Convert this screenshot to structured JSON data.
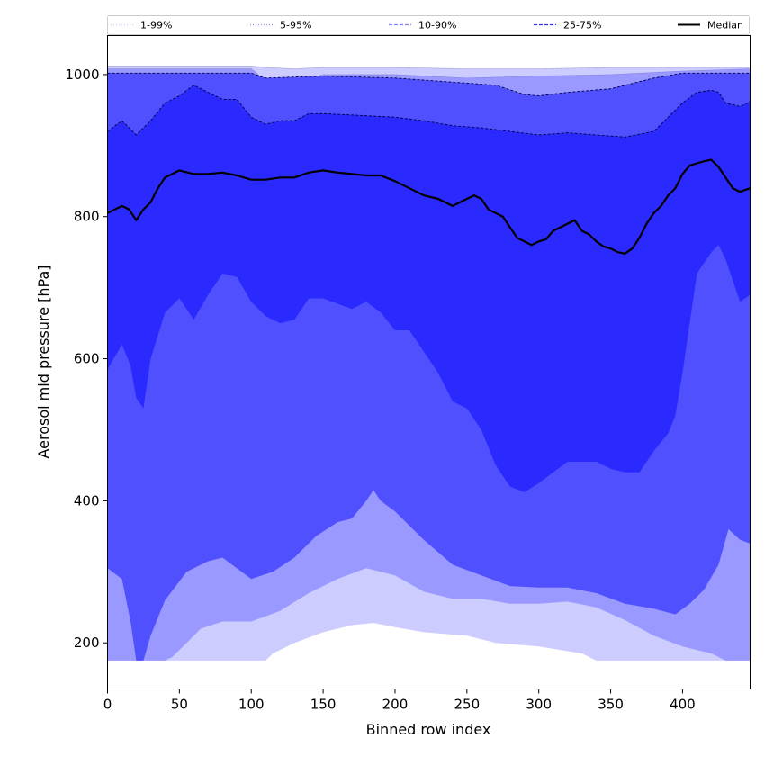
{
  "chart_data": {
    "type": "area",
    "xlabel": "Binned row index",
    "ylabel": "Aerosol mid pressure [hPa]",
    "xlim": [
      0,
      447
    ],
    "ylim": [
      135,
      1055
    ],
    "xticks": [
      0,
      50,
      100,
      150,
      200,
      250,
      300,
      350,
      400
    ],
    "yticks": [
      200,
      400,
      600,
      800,
      1000
    ],
    "grid": false,
    "legend_position": "top, above plot",
    "legend": [
      {
        "label": "1-99%",
        "color": "#d2d2fa",
        "style": "dotted"
      },
      {
        "label": "5-95%",
        "color": "#9b9bf5",
        "style": "dotted"
      },
      {
        "label": "10-90%",
        "color": "#8080ff",
        "style": "dashed"
      },
      {
        "label": "25-75%",
        "color": "#3030ff",
        "style": "dashed"
      },
      {
        "label": "Median",
        "color": "#000000",
        "style": "solid"
      }
    ],
    "bands": [
      {
        "name": "1-99%",
        "color": "#ccccff",
        "lower": [
          [
            0,
            175
          ],
          [
            100,
            175
          ],
          [
            110,
            175
          ],
          [
            115,
            185
          ],
          [
            120,
            190
          ],
          [
            130,
            200
          ],
          [
            150,
            215
          ],
          [
            170,
            225
          ],
          [
            185,
            228
          ],
          [
            200,
            222
          ],
          [
            220,
            215
          ],
          [
            250,
            210
          ],
          [
            270,
            200
          ],
          [
            300,
            195
          ],
          [
            330,
            185
          ],
          [
            340,
            175
          ],
          [
            447,
            175
          ]
        ],
        "upper": [
          [
            0,
            1012
          ],
          [
            100,
            1012
          ],
          [
            110,
            1010
          ],
          [
            130,
            1008
          ],
          [
            150,
            1010
          ],
          [
            200,
            1010
          ],
          [
            250,
            1008
          ],
          [
            300,
            1008
          ],
          [
            350,
            1010
          ],
          [
            400,
            1010
          ],
          [
            447,
            1010
          ]
        ]
      },
      {
        "name": "5-95%",
        "color": "#9999ff",
        "lower": [
          [
            0,
            175
          ],
          [
            40,
            175
          ],
          [
            45,
            180
          ],
          [
            55,
            200
          ],
          [
            65,
            220
          ],
          [
            80,
            230
          ],
          [
            100,
            230
          ],
          [
            120,
            245
          ],
          [
            140,
            270
          ],
          [
            160,
            290
          ],
          [
            180,
            305
          ],
          [
            200,
            295
          ],
          [
            220,
            272
          ],
          [
            240,
            262
          ],
          [
            260,
            262
          ],
          [
            280,
            255
          ],
          [
            300,
            255
          ],
          [
            320,
            258
          ],
          [
            340,
            250
          ],
          [
            360,
            232
          ],
          [
            380,
            210
          ],
          [
            400,
            195
          ],
          [
            420,
            185
          ],
          [
            430,
            175
          ],
          [
            447,
            175
          ]
        ],
        "upper": [
          [
            0,
            1008
          ],
          [
            100,
            1008
          ],
          [
            105,
            1000
          ],
          [
            110,
            990
          ],
          [
            115,
            985
          ],
          [
            130,
            988
          ],
          [
            150,
            1000
          ],
          [
            200,
            1000
          ],
          [
            220,
            998
          ],
          [
            250,
            995
          ],
          [
            300,
            998
          ],
          [
            350,
            1000
          ],
          [
            400,
            1005
          ],
          [
            447,
            1008
          ]
        ]
      },
      {
        "name": "10-90%",
        "color": "#5050ff",
        "lower": [
          [
            0,
            305
          ],
          [
            10,
            290
          ],
          [
            16,
            230
          ],
          [
            20,
            175
          ],
          [
            25,
            175
          ],
          [
            30,
            210
          ],
          [
            40,
            260
          ],
          [
            55,
            300
          ],
          [
            70,
            315
          ],
          [
            80,
            320
          ],
          [
            100,
            290
          ],
          [
            115,
            300
          ],
          [
            130,
            320
          ],
          [
            145,
            350
          ],
          [
            160,
            370
          ],
          [
            170,
            375
          ],
          [
            180,
            400
          ],
          [
            185,
            415
          ],
          [
            190,
            400
          ],
          [
            200,
            385
          ],
          [
            220,
            345
          ],
          [
            240,
            310
          ],
          [
            260,
            295
          ],
          [
            280,
            280
          ],
          [
            300,
            278
          ],
          [
            320,
            278
          ],
          [
            340,
            270
          ],
          [
            360,
            255
          ],
          [
            380,
            248
          ],
          [
            395,
            240
          ],
          [
            405,
            255
          ],
          [
            415,
            275
          ],
          [
            425,
            310
          ],
          [
            432,
            360
          ],
          [
            440,
            345
          ],
          [
            447,
            340
          ]
        ],
        "upper": [
          [
            0,
            1002
          ],
          [
            100,
            1002
          ],
          [
            110,
            995
          ],
          [
            150,
            998
          ],
          [
            200,
            995
          ],
          [
            250,
            988
          ],
          [
            270,
            985
          ],
          [
            290,
            972
          ],
          [
            300,
            970
          ],
          [
            320,
            975
          ],
          [
            350,
            980
          ],
          [
            380,
            995
          ],
          [
            400,
            1002
          ],
          [
            447,
            1002
          ]
        ]
      },
      {
        "name": "25-75%",
        "color": "#2a2aff",
        "lower": [
          [
            0,
            585
          ],
          [
            10,
            620
          ],
          [
            16,
            590
          ],
          [
            20,
            545
          ],
          [
            25,
            530
          ],
          [
            30,
            600
          ],
          [
            40,
            665
          ],
          [
            50,
            685
          ],
          [
            60,
            655
          ],
          [
            70,
            690
          ],
          [
            80,
            720
          ],
          [
            90,
            715
          ],
          [
            100,
            680
          ],
          [
            110,
            660
          ],
          [
            120,
            650
          ],
          [
            130,
            655
          ],
          [
            140,
            685
          ],
          [
            150,
            685
          ],
          [
            170,
            670
          ],
          [
            180,
            680
          ],
          [
            190,
            665
          ],
          [
            200,
            640
          ],
          [
            210,
            640
          ],
          [
            220,
            610
          ],
          [
            230,
            580
          ],
          [
            240,
            540
          ],
          [
            250,
            530
          ],
          [
            260,
            500
          ],
          [
            270,
            450
          ],
          [
            280,
            420
          ],
          [
            290,
            412
          ],
          [
            300,
            425
          ],
          [
            310,
            440
          ],
          [
            320,
            455
          ],
          [
            340,
            455
          ],
          [
            350,
            445
          ],
          [
            360,
            440
          ],
          [
            370,
            440
          ],
          [
            380,
            470
          ],
          [
            390,
            495
          ],
          [
            395,
            520
          ],
          [
            400,
            580
          ],
          [
            410,
            720
          ],
          [
            420,
            750
          ],
          [
            425,
            760
          ],
          [
            430,
            740
          ],
          [
            440,
            680
          ],
          [
            447,
            690
          ]
        ],
        "upper": [
          [
            0,
            920
          ],
          [
            10,
            935
          ],
          [
            20,
            915
          ],
          [
            30,
            935
          ],
          [
            40,
            960
          ],
          [
            50,
            970
          ],
          [
            60,
            985
          ],
          [
            70,
            975
          ],
          [
            80,
            965
          ],
          [
            90,
            965
          ],
          [
            100,
            940
          ],
          [
            110,
            930
          ],
          [
            120,
            935
          ],
          [
            130,
            935
          ],
          [
            140,
            945
          ],
          [
            150,
            945
          ],
          [
            200,
            940
          ],
          [
            220,
            935
          ],
          [
            240,
            928
          ],
          [
            260,
            925
          ],
          [
            280,
            920
          ],
          [
            300,
            915
          ],
          [
            320,
            918
          ],
          [
            340,
            915
          ],
          [
            360,
            912
          ],
          [
            380,
            920
          ],
          [
            390,
            940
          ],
          [
            400,
            960
          ],
          [
            410,
            975
          ],
          [
            420,
            978
          ],
          [
            425,
            975
          ],
          [
            430,
            960
          ],
          [
            440,
            955
          ],
          [
            447,
            962
          ]
        ]
      }
    ],
    "series": [
      {
        "name": "Median",
        "color": "#000000",
        "x": [
          0,
          5,
          10,
          15,
          20,
          25,
          30,
          35,
          40,
          45,
          50,
          60,
          70,
          80,
          90,
          100,
          110,
          120,
          130,
          140,
          150,
          160,
          170,
          180,
          190,
          200,
          210,
          220,
          230,
          240,
          250,
          255,
          260,
          265,
          270,
          275,
          280,
          285,
          290,
          295,
          300,
          305,
          310,
          315,
          320,
          325,
          330,
          335,
          340,
          345,
          350,
          355,
          360,
          365,
          370,
          375,
          380,
          385,
          390,
          395,
          400,
          405,
          410,
          415,
          420,
          425,
          430,
          435,
          440,
          447
        ],
        "y": [
          805,
          810,
          815,
          810,
          795,
          810,
          820,
          840,
          855,
          860,
          865,
          860,
          860,
          862,
          858,
          852,
          852,
          855,
          855,
          862,
          865,
          862,
          860,
          858,
          858,
          850,
          840,
          830,
          825,
          815,
          825,
          830,
          825,
          810,
          805,
          800,
          785,
          770,
          765,
          760,
          765,
          768,
          780,
          785,
          790,
          795,
          780,
          775,
          765,
          758,
          755,
          750,
          748,
          755,
          770,
          790,
          805,
          815,
          830,
          840,
          860,
          872,
          875,
          878,
          880,
          870,
          855,
          840,
          835,
          840
        ]
      }
    ]
  }
}
